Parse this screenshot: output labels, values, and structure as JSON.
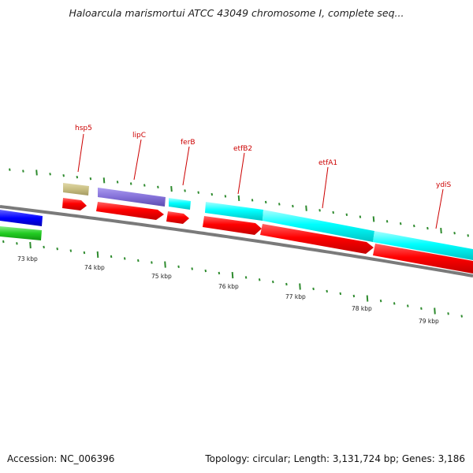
{
  "map": {
    "title": "Haloarcula marismortui ATCC 43049 chromosome I, complete seq...",
    "accession": "Accession: NC_006396",
    "topology": "Topology: circular; Length: 3,131,724 bp; Genes: 3,186"
  },
  "colors": {
    "backbone": "#808080",
    "tick": "#2e8b2e",
    "label": "#cc0000",
    "forward_cds_red": "#ff0000",
    "cyan_feature": "#00ffff",
    "purple_feature": "#8470d8",
    "khaki_feature": "#c8be82",
    "blue_feature": "#0000ff",
    "green_feature": "#22cc22"
  },
  "kbp_labels": [
    "73 kbp",
    "74 kbp",
    "75 kbp",
    "76 kbp",
    "77 kbp",
    "78 kbp",
    "79 kbp"
  ],
  "gene_labels": [
    "hsp5",
    "lipC",
    "ferB",
    "etfB2",
    "etfA1",
    "ydiS"
  ]
}
